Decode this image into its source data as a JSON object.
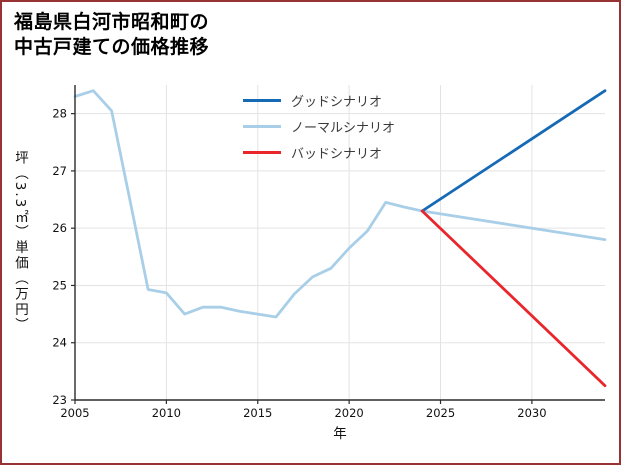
{
  "frame_color": "#993232",
  "title": {
    "line1": "福島県白河市昭和町の",
    "line2": "中古戸建ての価格推移"
  },
  "chart_data": {
    "type": "line",
    "title": "福島県白河市昭和町の中古戸建ての価格推移",
    "xlabel": "年",
    "ylabel": "坪（3.3㎡）単価（万円）",
    "xlim": [
      2005,
      2034
    ],
    "ylim": [
      23,
      28.5
    ],
    "xticks": [
      2005,
      2010,
      2015,
      2020,
      2025,
      2030
    ],
    "yticks": [
      23,
      24,
      25,
      26,
      27,
      28
    ],
    "grid": true,
    "legend_position": "upper-center-inside",
    "colors": {
      "grid": "#e3e3e3",
      "spine": "#2b2b2b",
      "tick_label": "#111111",
      "background": "#ffffff"
    },
    "series": [
      {
        "name": "グッドシナリオ",
        "color": "#1569b5",
        "x": [
          2024,
          2034
        ],
        "values": [
          26.3,
          28.4
        ]
      },
      {
        "name": "ノーマルシナリオ",
        "color": "#a9cfe8",
        "x": [
          2005,
          2006,
          2007,
          2008,
          2009,
          2010,
          2011,
          2012,
          2013,
          2014,
          2015,
          2016,
          2017,
          2018,
          2019,
          2020,
          2021,
          2022,
          2023,
          2024,
          2034
        ],
        "values": [
          28.3,
          28.4,
          28.05,
          26.5,
          24.93,
          24.87,
          24.5,
          24.62,
          24.62,
          24.55,
          24.5,
          24.45,
          24.85,
          25.15,
          25.3,
          25.65,
          25.95,
          26.45,
          26.37,
          26.3,
          25.8
        ]
      },
      {
        "name": "バッドシナリオ",
        "color": "#e8262b",
        "x": [
          2024,
          2034
        ],
        "values": [
          26.3,
          23.25
        ]
      }
    ]
  }
}
